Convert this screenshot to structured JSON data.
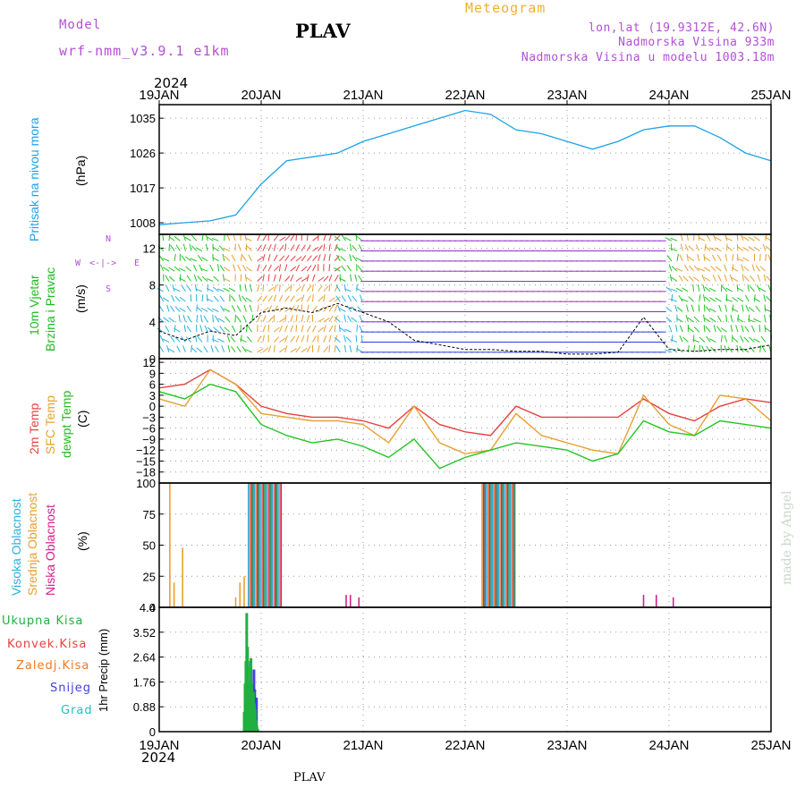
{
  "header": {
    "model_label": "Model",
    "model_name": "wrf-nmm_v3.9.1 e1km",
    "station": "PLAV",
    "title": "Meteogram",
    "lonlat": "lon,lat (19.9312E, 42.6N)",
    "elevation": "Nadmorska Visina 933m",
    "model_elevation": "Nadmorska Visina u modelu 1003.18m",
    "year": "2024"
  },
  "footer": {
    "station": "PLAV",
    "year": "2024",
    "credit": "made by Angel"
  },
  "colors": {
    "pressure": "#1ca3e8",
    "wind_labels": "#22b922",
    "direction": "#b44fd8",
    "temp2m": "#e84040",
    "sfc": "#e8a030",
    "dewpt": "#22c522",
    "cloud_high": "#2ab0e0",
    "cloud_mid": "#e8a030",
    "cloud_low": "#d6208a",
    "precip_total": "#20b040",
    "precip_conv": "#e84040",
    "precip_frz": "#f07a20",
    "precip_snow": "#4040e0",
    "precip_grad": "#20c0c0"
  },
  "panel_labels": {
    "pressure": [
      "Pritisak na nivou mora",
      "(hPa)"
    ],
    "wind": [
      "10m Vjetar",
      "Brzina i Pravac",
      "(m/s)"
    ],
    "temp": [
      "2m Temp",
      "SFC Temp",
      "dewpt Temp",
      "(C)"
    ],
    "cloud": [
      "Visoka Oblacnost",
      "Srednja Oblacnost",
      "Niska Oblacnost",
      "(%)"
    ],
    "precip_legend": [
      "Ukupna Kisa",
      "Konvek.Kisa",
      "Zaledj.Kisa",
      "Snijeg",
      "Grad"
    ],
    "precip_axis": "1hr Precip (mm)"
  },
  "compass": {
    "n": "N",
    "w": "W",
    "e": "E",
    "s": "S",
    "arrows": "<-|->"
  },
  "chart_data": [
    {
      "type": "line",
      "name": "pressure",
      "x": [
        0,
        6,
        12,
        18,
        24,
        30,
        36,
        42,
        48,
        54,
        60,
        66,
        72,
        78,
        84,
        90,
        96,
        102,
        108,
        114,
        120,
        126,
        132,
        138,
        144
      ],
      "categories_ticks": [
        "19JAN",
        "20JAN",
        "21JAN",
        "22JAN",
        "23JAN",
        "24JAN",
        "25JAN"
      ],
      "series": [
        {
          "name": "Pritisak na nivou mora",
          "values": [
            1007.5,
            1008,
            1008.5,
            1010,
            1018,
            1024,
            1025,
            1026,
            1029,
            1031,
            1033,
            1035,
            1037,
            1036,
            1032,
            1031,
            1029,
            1027,
            1029,
            1032,
            1033,
            1033,
            1030,
            1026,
            1024
          ]
        }
      ],
      "yticks": [
        1008,
        1017,
        1026,
        1035
      ],
      "ylim": [
        1005,
        1038.5
      ]
    },
    {
      "type": "line",
      "name": "wind",
      "x": [
        0,
        6,
        12,
        18,
        24,
        30,
        36,
        42,
        48,
        54,
        60,
        66,
        72,
        78,
        84,
        90,
        96,
        102,
        108,
        114,
        120,
        126,
        132,
        138,
        144
      ],
      "series": [
        {
          "name": "Brzina",
          "values": [
            3,
            2,
            3,
            2.5,
            5,
            5.5,
            5,
            6,
            5,
            4,
            2,
            1.5,
            1,
            1,
            0.8,
            0.8,
            0.5,
            0.5,
            0.7,
            4.5,
            1,
            0.8,
            1,
            1,
            1.5
          ]
        }
      ],
      "yticks": [
        0,
        4,
        8,
        12
      ],
      "ylim": [
        0,
        13.5
      ]
    },
    {
      "type": "line",
      "name": "temperature",
      "x": [
        0,
        6,
        12,
        18,
        24,
        30,
        36,
        42,
        48,
        54,
        60,
        66,
        72,
        78,
        84,
        90,
        96,
        102,
        108,
        114,
        120,
        126,
        132,
        138,
        144
      ],
      "series": [
        {
          "name": "2m Temp",
          "values": [
            5,
            6,
            10,
            6,
            0,
            -2,
            -3,
            -3,
            -4,
            -6,
            0,
            -5,
            -7,
            -8,
            0,
            -3,
            -3,
            -3,
            -3,
            2,
            -2,
            -4,
            0,
            2,
            1
          ]
        },
        {
          "name": "SFC Temp",
          "values": [
            2,
            0,
            10,
            6,
            -2,
            -3,
            -4,
            -4,
            -5,
            -10,
            0,
            -10,
            -13,
            -12,
            -2,
            -8,
            -10,
            -12,
            -13,
            3,
            -5,
            -8,
            3,
            2,
            -4
          ]
        },
        {
          "name": "dewpt Temp",
          "values": [
            4,
            2,
            6,
            4,
            -5,
            -8,
            -10,
            -9,
            -11,
            -14,
            -9,
            -17,
            -14,
            -12,
            -10,
            -11,
            -12,
            -15,
            -13,
            -4,
            -7,
            -8,
            -4,
            -5,
            -6
          ]
        }
      ],
      "yticks": [
        12,
        9,
        6,
        3,
        0,
        -3,
        -6,
        -9,
        -12,
        -15,
        -18
      ],
      "ylim": [
        -21,
        13
      ]
    },
    {
      "type": "bar",
      "name": "cloud",
      "series": [
        {
          "name": "Visoka Oblacnost",
          "values": [
            0,
            0,
            0,
            100,
            100,
            100,
            0,
            0,
            0,
            100,
            0
          ]
        },
        {
          "name": "Srednja Oblacnost",
          "values": [
            100,
            48,
            20,
            100,
            100,
            100,
            0,
            0,
            0,
            100,
            0
          ]
        },
        {
          "name": "Niska Oblacnost",
          "values": [
            0,
            0,
            0,
            100,
            100,
            100,
            10,
            10,
            0,
            100,
            10
          ]
        }
      ],
      "yticks": [
        0,
        25,
        50,
        75,
        100
      ],
      "ylim": [
        0,
        100
      ]
    },
    {
      "type": "bar",
      "name": "precip",
      "x": [
        20.0,
        20.2,
        20.4,
        20.6,
        20.8,
        21.0,
        21.2,
        21.4,
        21.6,
        21.8,
        22.0,
        22.2,
        22.4,
        22.6,
        22.8,
        23.0,
        23.2,
        23.4,
        23.6,
        23.8,
        24.0,
        24.2,
        24.4,
        24.6,
        24.8,
        25.0,
        25.2,
        25.4,
        25.6,
        25.8,
        26.0,
        26.2,
        26.4,
        26.6,
        26.8,
        27.0,
        27.2,
        27.4
      ],
      "series": [
        {
          "name": "Ukupna Kisa",
          "values": [
            0.7,
            1.7,
            2.5,
            4.2,
            3.0,
            1.7,
            0.8,
            2.3,
            2.6,
            1.7,
            1.4,
            1.4,
            1.0,
            0.8,
            0.4,
            0.2,
            0.1,
            0,
            0,
            0,
            0,
            0,
            0,
            0,
            0,
            0,
            0,
            0,
            0,
            0,
            0,
            0,
            0,
            0,
            0,
            0,
            0,
            0
          ]
        },
        {
          "name": "Snijeg",
          "values": [
            0,
            1.6,
            0,
            0,
            2.5,
            1.6,
            0.7,
            0,
            2.2,
            1.5,
            1.2,
            1.2,
            0,
            0,
            0,
            0,
            0,
            0,
            0,
            0,
            0,
            0,
            0,
            0,
            0,
            0,
            0,
            0,
            0,
            0,
            0,
            0,
            0,
            0,
            0,
            0,
            0,
            0
          ]
        }
      ],
      "yticks": [
        0,
        0.88,
        1.76,
        2.64,
        3.52,
        4.4
      ],
      "ylim": [
        0,
        4.4
      ]
    }
  ]
}
